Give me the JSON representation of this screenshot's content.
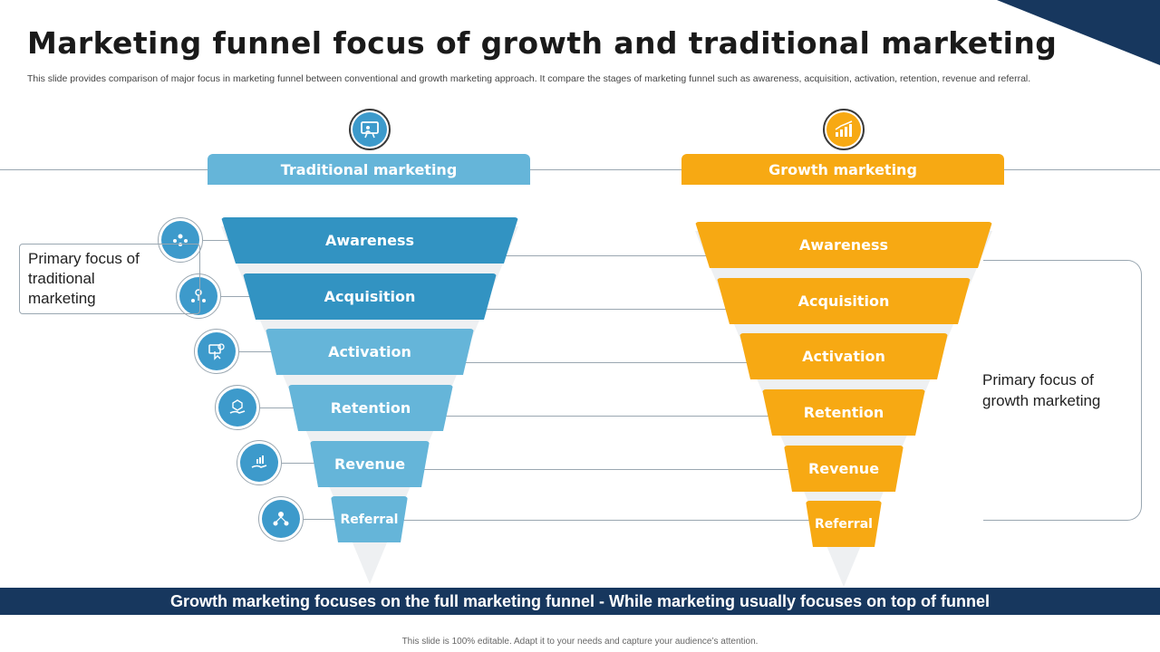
{
  "slide": {
    "title": "Marketing funnel focus of growth and traditional marketing",
    "subtitle": "This slide provides comparison of major focus in marketing funnel between conventional and growth marketing approach. It compare the stages of marketing funnel such as awareness, acquisition, activation, retention, revenue and referral."
  },
  "traditional": {
    "heading": "Traditional marketing",
    "icon": "tv-presenter-icon",
    "stages": [
      "Awareness",
      "Acquisition",
      "Activation",
      "Retention",
      "Revenue",
      "Referral"
    ],
    "callout": "Primary focus of traditional marketing",
    "colors": [
      "#3293c2",
      "#3293c2",
      "#65b5d9",
      "#65b5d9",
      "#65b5d9",
      "#65b5d9"
    ]
  },
  "growth": {
    "heading": "Growth marketing",
    "icon": "growth-chart-icon",
    "stages": [
      "Awareness",
      "Acquisition",
      "Activation",
      "Retention",
      "Revenue",
      "Referral"
    ],
    "callout": "Primary focus of growth marketing",
    "color": "#f7a913"
  },
  "stage_icons": [
    "audience-icon",
    "acquisition-user-icon",
    "activation-click-icon",
    "retention-hand-icon",
    "revenue-hand-icon",
    "referral-network-icon"
  ],
  "banner": "Growth marketing focuses on the full marketing funnel - While marketing usually focuses on top of funnel",
  "footer": "This slide is 100% editable. Adapt it to your needs and capture your audience’s attention."
}
